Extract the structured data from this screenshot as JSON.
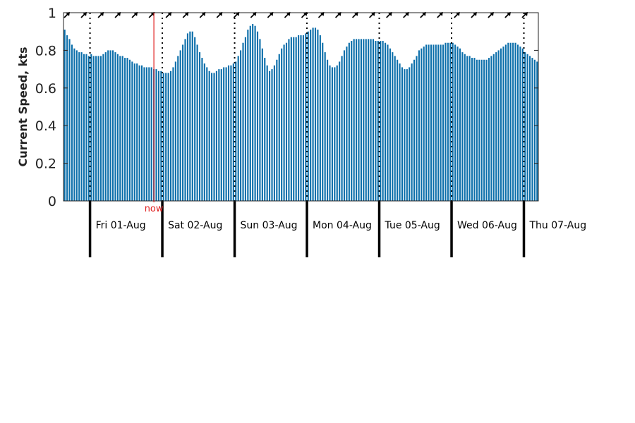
{
  "chart_data": {
    "type": "bar",
    "ylabel": "Current Speed, kts",
    "xlabel": "",
    "ylim": [
      0,
      1
    ],
    "yticks": [
      0,
      0.2,
      0.4,
      0.6,
      0.8,
      1
    ],
    "ytick_labels": [
      "0",
      "0.2",
      "0.4",
      "0.6",
      "0.8",
      "1"
    ],
    "grid": false,
    "bar_color": "#0a6eaa",
    "now_color": "#e02020",
    "now_label": "now",
    "now_index": 37.5,
    "day_labels": [
      "Fri 01-Aug",
      "Sat 02-Aug",
      "Sun 03-Aug",
      "Mon 04-Aug",
      "Tue 05-Aug",
      "Wed 06-Aug",
      "Thu 07-Aug"
    ],
    "day_boundary_index": [
      11,
      41,
      71,
      101,
      131,
      161,
      191
    ],
    "direction_arrows": "northeast",
    "values": [
      0.91,
      0.88,
      0.86,
      0.83,
      0.81,
      0.8,
      0.79,
      0.79,
      0.78,
      0.78,
      0.77,
      0.78,
      0.77,
      0.77,
      0.77,
      0.77,
      0.78,
      0.79,
      0.8,
      0.8,
      0.8,
      0.79,
      0.78,
      0.77,
      0.77,
      0.76,
      0.76,
      0.75,
      0.74,
      0.73,
      0.73,
      0.72,
      0.72,
      0.71,
      0.71,
      0.71,
      0.71,
      0.7,
      0.7,
      0.69,
      0.69,
      0.68,
      0.68,
      0.68,
      0.69,
      0.71,
      0.74,
      0.77,
      0.8,
      0.83,
      0.86,
      0.89,
      0.9,
      0.9,
      0.87,
      0.83,
      0.79,
      0.76,
      0.73,
      0.71,
      0.69,
      0.68,
      0.68,
      0.69,
      0.7,
      0.7,
      0.71,
      0.71,
      0.72,
      0.72,
      0.73,
      0.74,
      0.77,
      0.8,
      0.84,
      0.87,
      0.91,
      0.93,
      0.94,
      0.93,
      0.9,
      0.86,
      0.81,
      0.76,
      0.72,
      0.69,
      0.7,
      0.72,
      0.75,
      0.78,
      0.81,
      0.83,
      0.84,
      0.86,
      0.87,
      0.87,
      0.87,
      0.88,
      0.88,
      0.88,
      0.89,
      0.9,
      0.91,
      0.92,
      0.92,
      0.91,
      0.88,
      0.84,
      0.79,
      0.75,
      0.72,
      0.71,
      0.71,
      0.72,
      0.74,
      0.77,
      0.8,
      0.82,
      0.84,
      0.85,
      0.86,
      0.86,
      0.86,
      0.86,
      0.86,
      0.86,
      0.86,
      0.86,
      0.86,
      0.85,
      0.85,
      0.85,
      0.85,
      0.84,
      0.83,
      0.81,
      0.79,
      0.77,
      0.75,
      0.73,
      0.71,
      0.7,
      0.7,
      0.71,
      0.73,
      0.75,
      0.77,
      0.8,
      0.81,
      0.82,
      0.83,
      0.83,
      0.83,
      0.83,
      0.83,
      0.83,
      0.83,
      0.83,
      0.84,
      0.84,
      0.84,
      0.84,
      0.83,
      0.82,
      0.81,
      0.79,
      0.78,
      0.77,
      0.77,
      0.76,
      0.76,
      0.75,
      0.75,
      0.75,
      0.75,
      0.75,
      0.76,
      0.77,
      0.78,
      0.79,
      0.8,
      0.81,
      0.82,
      0.83,
      0.84,
      0.84,
      0.84,
      0.84,
      0.83,
      0.82,
      0.81,
      0.79,
      0.78,
      0.77,
      0.76,
      0.75,
      0.74
    ]
  }
}
